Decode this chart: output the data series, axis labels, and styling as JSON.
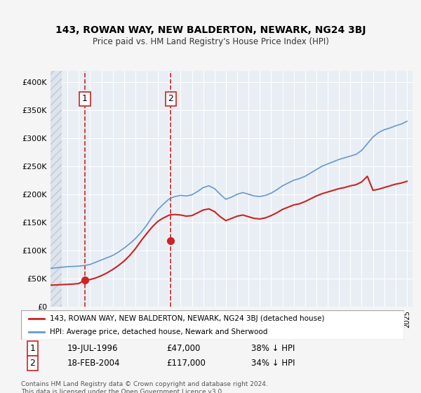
{
  "title": "143, ROWAN WAY, NEW BALDERTON, NEWARK, NG24 3BJ",
  "subtitle": "Price paid vs. HM Land Registry's House Price Index (HPI)",
  "sale1_date": "19-JUL-1996",
  "sale1_price": 47000,
  "sale1_label": "38% ↓ HPI",
  "sale1_year": 1996.54,
  "sale2_date": "18-FEB-2004",
  "sale2_price": 117000,
  "sale2_label": "34% ↓ HPI",
  "sale2_year": 2004.12,
  "legend_line1": "143, ROWAN WAY, NEW BALDERTON, NEWARK, NG24 3BJ (detached house)",
  "legend_line2": "HPI: Average price, detached house, Newark and Sherwood",
  "footnote": "Contains HM Land Registry data © Crown copyright and database right 2024.\nThis data is licensed under the Open Government Licence v3.0.",
  "hpi_color": "#6699cc",
  "price_color": "#cc2222",
  "dashed_line_color": "#cc2222",
  "background_color": "#f0f4f8",
  "plot_bg_color": "#e8eef4",
  "hatch_color": "#d0d8e0",
  "ylim": [
    0,
    420000
  ],
  "yticks": [
    0,
    50000,
    100000,
    150000,
    200000,
    250000,
    300000,
    350000,
    400000
  ],
  "ytick_labels": [
    "£0",
    "£50K",
    "£100K",
    "£150K",
    "£200K",
    "£250K",
    "£300K",
    "£350K",
    "£400K"
  ],
  "xlim_start": 1993.5,
  "xlim_end": 2025.5,
  "hpi_years": [
    1993.5,
    1994,
    1994.5,
    1995,
    1995.5,
    1996,
    1996.5,
    1997,
    1997.5,
    1998,
    1998.5,
    1999,
    1999.5,
    2000,
    2000.5,
    2001,
    2001.5,
    2002,
    2002.5,
    2003,
    2003.5,
    2004,
    2004.5,
    2005,
    2005.5,
    2006,
    2006.5,
    2007,
    2007.5,
    2008,
    2008.5,
    2009,
    2009.5,
    2010,
    2010.5,
    2011,
    2011.5,
    2012,
    2012.5,
    2013,
    2013.5,
    2014,
    2014.5,
    2015,
    2015.5,
    2016,
    2016.5,
    2017,
    2017.5,
    2018,
    2018.5,
    2019,
    2019.5,
    2020,
    2020.5,
    2021,
    2021.5,
    2022,
    2022.5,
    2023,
    2023.5,
    2024,
    2024.5,
    2025
  ],
  "hpi_values": [
    68000,
    69000,
    70000,
    71000,
    71500,
    72000,
    73000,
    75000,
    79000,
    83000,
    87000,
    91000,
    97000,
    104000,
    112000,
    121000,
    132000,
    145000,
    160000,
    173000,
    183000,
    192000,
    196000,
    198000,
    197000,
    199000,
    205000,
    212000,
    215000,
    210000,
    200000,
    191000,
    195000,
    200000,
    203000,
    200000,
    197000,
    196000,
    198000,
    202000,
    208000,
    215000,
    220000,
    225000,
    228000,
    232000,
    238000,
    244000,
    250000,
    254000,
    258000,
    262000,
    265000,
    268000,
    271000,
    278000,
    290000,
    302000,
    310000,
    315000,
    318000,
    322000,
    325000,
    330000
  ],
  "price_years": [
    1993.5,
    1994,
    1994.5,
    1995,
    1995.5,
    1996,
    1996.5,
    1997,
    1997.5,
    1998,
    1998.5,
    1999,
    1999.5,
    2000,
    2000.5,
    2001,
    2001.5,
    2002,
    2002.5,
    2003,
    2003.5,
    2004,
    2004.5,
    2005,
    2005.5,
    2006,
    2006.5,
    2007,
    2007.5,
    2008,
    2008.5,
    2009,
    2009.5,
    2010,
    2010.5,
    2011,
    2011.5,
    2012,
    2012.5,
    2013,
    2013.5,
    2014,
    2014.5,
    2015,
    2015.5,
    2016,
    2016.5,
    2017,
    2017.5,
    2018,
    2018.5,
    2019,
    2019.5,
    2020,
    2020.5,
    2021,
    2021.5,
    2022,
    2022.5,
    2023,
    2023.5,
    2024,
    2024.5,
    2025
  ],
  "price_values": [
    38000,
    38500,
    39000,
    39500,
    40000,
    41000,
    47000,
    48000,
    51000,
    55000,
    60000,
    66000,
    73000,
    81000,
    91000,
    103000,
    117000,
    130000,
    142000,
    152000,
    158000,
    163000,
    164000,
    163000,
    161000,
    162000,
    167000,
    172000,
    174000,
    169000,
    160000,
    153000,
    157000,
    161000,
    163000,
    160000,
    157000,
    156000,
    158000,
    162000,
    167000,
    173000,
    177000,
    181000,
    183000,
    187000,
    192000,
    197000,
    201000,
    204000,
    207000,
    210000,
    212000,
    215000,
    217000,
    222000,
    232000,
    207000,
    209000,
    212000,
    215000,
    218000,
    220000,
    223000
  ]
}
